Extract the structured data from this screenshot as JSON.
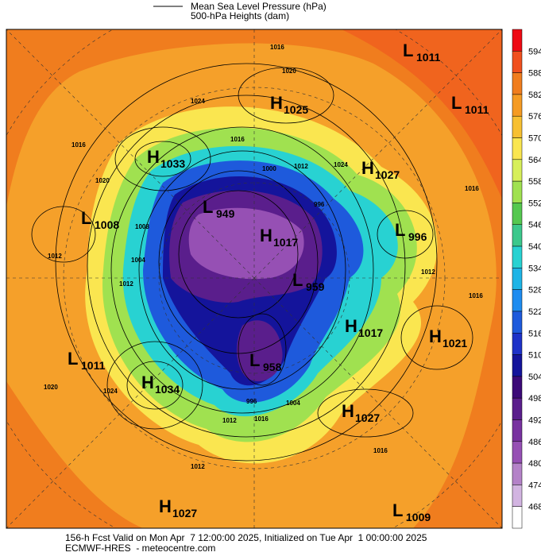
{
  "legend": {
    "items": [
      "Mean Sea Level Pressure (hPa)",
      "500-hPa Heights (dam)"
    ]
  },
  "colorbar": {
    "labels": [
      594,
      588,
      582,
      576,
      570,
      564,
      558,
      552,
      546,
      540,
      534,
      528,
      522,
      516,
      510,
      504,
      498,
      492,
      486,
      480,
      474,
      468
    ],
    "colors": [
      "#ee0a14",
      "#f0501e",
      "#f07d1e",
      "#f59b23",
      "#f7c032",
      "#fae650",
      "#d7ef5a",
      "#a0e150",
      "#55c850",
      "#3cc88c",
      "#28d2d2",
      "#1eb4e6",
      "#1e8cf0",
      "#1e5adc",
      "#1e32c8",
      "#14149b",
      "#3c0a78",
      "#5a1e8c",
      "#7832a0",
      "#9650b4",
      "#b482c8",
      "#d2b4e1",
      "#ffffff"
    ]
  },
  "centers": [
    {
      "letter": "H",
      "value": "1025"
    },
    {
      "letter": "L",
      "value": "1011"
    },
    {
      "letter": "L",
      "value": "1011"
    },
    {
      "letter": "H",
      "value": "1033"
    },
    {
      "letter": "H",
      "value": "1027"
    },
    {
      "letter": "L",
      "value": "1008"
    },
    {
      "letter": "L",
      "value": "949"
    },
    {
      "letter": "H",
      "value": "1017"
    },
    {
      "letter": "L",
      "value": "996"
    },
    {
      "letter": "L",
      "value": "959"
    },
    {
      "letter": "H",
      "value": "1017"
    },
    {
      "letter": "H",
      "value": "1021"
    },
    {
      "letter": "L",
      "value": "1011"
    },
    {
      "letter": "L",
      "value": "958"
    },
    {
      "letter": "H",
      "value": "1034"
    },
    {
      "letter": "H",
      "value": "1027"
    },
    {
      "letter": "H",
      "value": "1027"
    },
    {
      "letter": "L",
      "value": "1009"
    }
  ],
  "contour_labels": [
    "1016",
    "1020",
    "1024",
    "1016",
    "1020",
    "1012",
    "1016",
    "1008",
    "1004",
    "1012",
    "1000",
    "1012",
    "1024",
    "996",
    "1016",
    "1012",
    "1016",
    "1020",
    "1024",
    "1012",
    "1016",
    "1016",
    "1012",
    "1004",
    "996"
  ],
  "footer": [
    "156-h Fcst Valid on Mon Apr  7 12:00:00 2025, Initialized on Tue Apr  1 00:00:00 2025",
    "ECMWF-HRES  - meteocentre.com"
  ]
}
